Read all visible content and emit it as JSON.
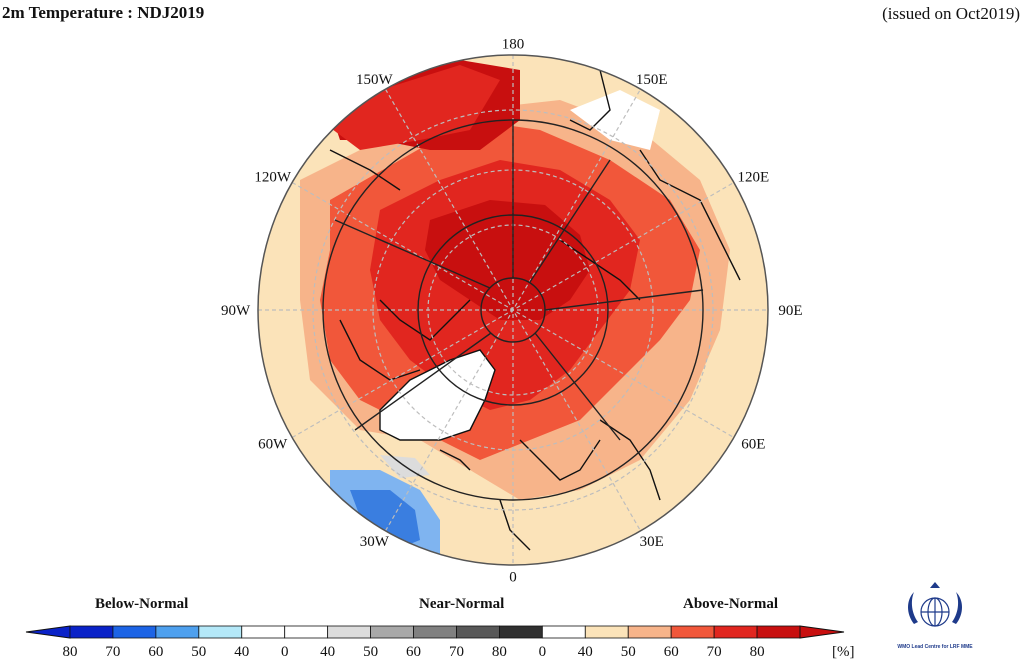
{
  "header": {
    "title": "2m Temperature : NDJ2019",
    "issued": "(issued on Oct2019)"
  },
  "map": {
    "projection": "north-polar-stereographic",
    "longitude_labels": [
      {
        "text": "180",
        "lon": 180
      },
      {
        "text": "150E",
        "lon": 150
      },
      {
        "text": "120E",
        "lon": 120
      },
      {
        "text": "90E",
        "lon": 90
      },
      {
        "text": "60E",
        "lon": 60
      },
      {
        "text": "30E",
        "lon": 30
      },
      {
        "text": "0",
        "lon": 0
      },
      {
        "text": "30W",
        "lon": -30
      },
      {
        "text": "60W",
        "lon": -60
      },
      {
        "text": "90W",
        "lon": -90
      },
      {
        "text": "120W",
        "lon": -120
      },
      {
        "text": "150W",
        "lon": -150
      }
    ],
    "colors": {
      "above_80": "#c80f0f",
      "above_70": "#e1261f",
      "above_60": "#f1573a",
      "above_50": "#f7b48a",
      "above_40": "#fbe3b9",
      "normal": "#ffffff",
      "below_50": "#7fb4f0",
      "below_70": "#3a7ee0",
      "below_80": "#1448c0",
      "ice": "#ffffff"
    }
  },
  "legend": {
    "below_normal": "Below-Normal",
    "near_normal": "Near-Normal",
    "above_normal": "Above-Normal",
    "unit": "[%]",
    "ticks": [
      "80",
      "70",
      "60",
      "50",
      "40",
      "0",
      "40",
      "50",
      "60",
      "70",
      "80",
      "0",
      "40",
      "50",
      "60",
      "70",
      "80"
    ],
    "colors": [
      "#0a22c8",
      "#1c64e6",
      "#4ea0ee",
      "#b4e8f8",
      "#ffffff",
      "#ffffff",
      "#dcdcdc",
      "#a8a8a8",
      "#808080",
      "#585858",
      "#303030",
      "#ffffff",
      "#fbe3b9",
      "#f7b48a",
      "#f1573a",
      "#e1261f",
      "#c80f0f"
    ]
  },
  "logo": {
    "text": "WMO Lead Centre for LRF MME"
  }
}
